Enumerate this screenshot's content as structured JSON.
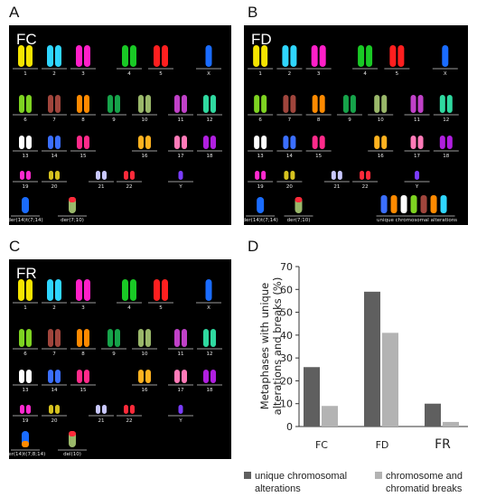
{
  "panels": {
    "a": {
      "letter": "A",
      "label": "FC"
    },
    "b": {
      "letter": "B",
      "label": "FD"
    },
    "c": {
      "letter": "C",
      "label": "FR"
    },
    "d": {
      "letter": "D"
    }
  },
  "karyotype_labels": {
    "row1": [
      "1",
      "2",
      "3",
      "4",
      "5",
      "X"
    ],
    "row2": [
      "6",
      "7",
      "8",
      "9",
      "10",
      "11",
      "12"
    ],
    "row3": [
      "13",
      "14",
      "15",
      "16",
      "17",
      "18"
    ],
    "row4": [
      "19",
      "20",
      "21",
      "22",
      "Y"
    ],
    "a_extra": [
      "der(14)t(7;14)",
      "der(7;10)"
    ],
    "b_extra": [
      "der(14)t(7;14)",
      "der(7;10)",
      "unique chromosomal alterations"
    ],
    "c_extra": [
      "der(14)t(7;8;14)",
      "del(10)"
    ]
  },
  "colors": {
    "dark_series": "#5f5f5f",
    "light_series": "#b3b3b3",
    "karyo_background": "#000000",
    "chromosomes": [
      "#f5e400",
      "#2fd6ff",
      "#ff1fc8",
      "#19c925",
      "#ff1f1f",
      "#1a6cff",
      "#7ed321",
      "#a0453c",
      "#ff8a00",
      "#16a34a",
      "#9ab86a",
      "#c041c8",
      "#2fd9a0",
      "#ffffff",
      "#3b6fff",
      "#ff2a8a",
      "#ffb21f",
      "#ff7ab8",
      "#b01fe0",
      "#ff2ad0",
      "#d6c21f",
      "#c9c8ff",
      "#ff2a3a",
      "#7a3cff"
    ]
  },
  "chart_data": {
    "type": "bar",
    "categories": [
      "FC",
      "FD",
      "FR"
    ],
    "series": [
      {
        "name": "unique chromosomal alterations",
        "values": [
          26,
          59,
          10
        ]
      },
      {
        "name": "chromosome and chromatid breaks",
        "values": [
          9,
          41,
          2
        ]
      }
    ],
    "ylabel": "Metaphases with unique alterations and breaks (%)",
    "ylim": [
      0,
      70
    ],
    "yticks": [
      "0",
      "10",
      "20",
      "30",
      "40",
      "50",
      "60",
      "70"
    ],
    "grid": false,
    "legend": "bottom"
  }
}
